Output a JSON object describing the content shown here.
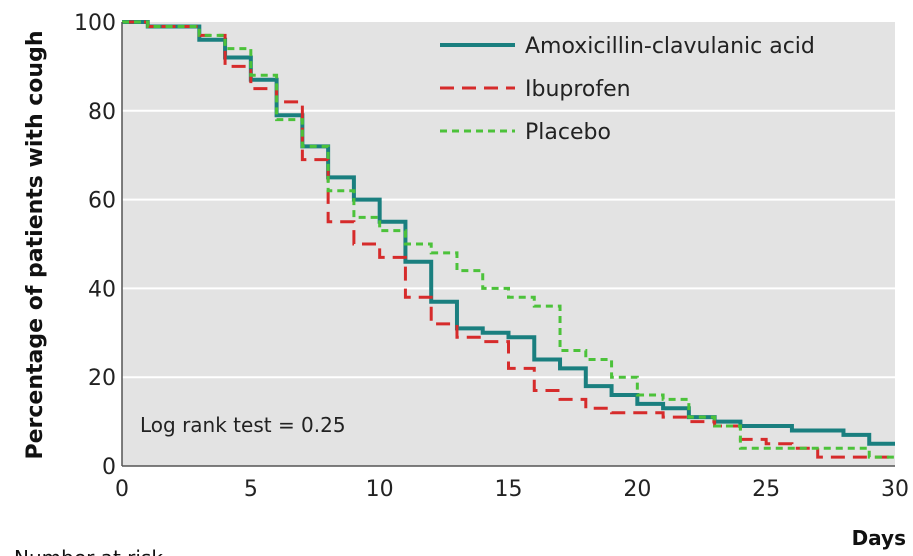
{
  "chart_data": {
    "type": "line",
    "step": true,
    "ylabel": "Percentage of patients with cough",
    "xlabel": "Days",
    "xlim": [
      0,
      30
    ],
    "ylim": [
      0,
      100
    ],
    "xticks": [
      0,
      5,
      10,
      15,
      20,
      25,
      30
    ],
    "yticks": [
      0,
      20,
      40,
      60,
      80,
      100
    ],
    "grid": "horizontal",
    "legend_position": "top-right",
    "annotation": "Log rank test = 0.25",
    "footer_label": "Number at risk",
    "series": [
      {
        "name": "Amoxicillin-clavulanic acid",
        "color": "#1a7f7f",
        "dash": "solid",
        "x": [
          0,
          1,
          3,
          4,
          5,
          6,
          7,
          8,
          9,
          10,
          11,
          12,
          13,
          14,
          15,
          16,
          17,
          18,
          19,
          20,
          21,
          22,
          23,
          24,
          25,
          26,
          27,
          28,
          29,
          30
        ],
        "y": [
          100,
          99,
          96,
          92,
          87,
          79,
          72,
          65,
          60,
          55,
          46,
          37,
          31,
          30,
          29,
          24,
          22,
          18,
          16,
          14,
          13,
          11,
          10,
          9,
          9,
          8,
          8,
          7,
          5,
          5
        ]
      },
      {
        "name": "Ibuprofen",
        "color": "#d62b2b",
        "dash": "dashed",
        "x": [
          0,
          1,
          3,
          4,
          5,
          6,
          7,
          8,
          9,
          10,
          11,
          12,
          13,
          14,
          15,
          16,
          17,
          18,
          19,
          20,
          21,
          22,
          23,
          24,
          25,
          26,
          27,
          28,
          29,
          30
        ],
        "y": [
          100,
          99,
          97,
          90,
          85,
          82,
          69,
          55,
          50,
          47,
          38,
          32,
          29,
          28,
          22,
          17,
          15,
          13,
          12,
          12,
          11,
          10,
          9,
          6,
          5,
          4,
          2,
          2,
          2,
          2
        ]
      },
      {
        "name": "Placebo",
        "color": "#4cc23a",
        "dash": "dashed",
        "x": [
          0,
          1,
          3,
          4,
          5,
          6,
          7,
          8,
          9,
          10,
          11,
          12,
          13,
          14,
          15,
          16,
          17,
          18,
          19,
          20,
          21,
          22,
          23,
          24,
          25,
          26,
          27,
          28,
          29,
          30
        ],
        "y": [
          100,
          99,
          97,
          94,
          88,
          78,
          72,
          62,
          56,
          53,
          50,
          48,
          44,
          40,
          38,
          36,
          26,
          24,
          20,
          16,
          15,
          11,
          9,
          4,
          4,
          4,
          4,
          4,
          2,
          2
        ]
      }
    ]
  }
}
